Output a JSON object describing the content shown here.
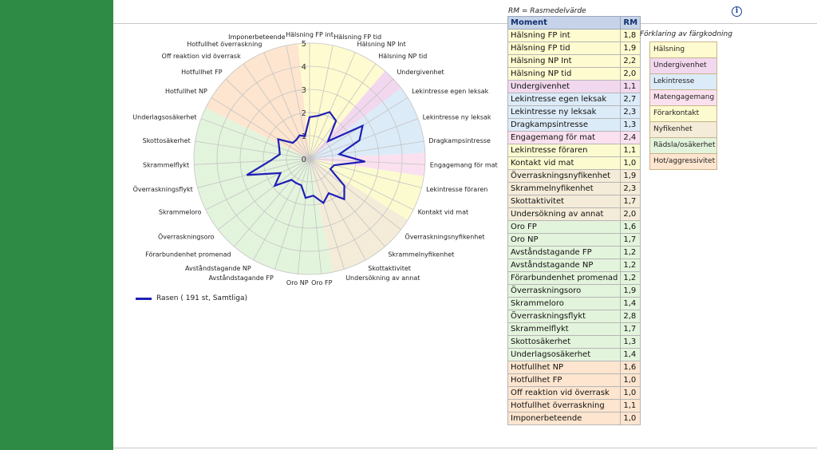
{
  "rm_note": "RM = Rasmedelvärde",
  "table_headers": {
    "moment": "Moment",
    "rm": "RM"
  },
  "legend_series": "Rasen ( 191 st, Samtliga)",
  "key_title": "Förklaring av färgkodning",
  "categories": [
    {
      "name": "Hälsning",
      "color": "#fffbd0"
    },
    {
      "name": "Undergivenhet",
      "color": "#f2d8ee"
    },
    {
      "name": "Lekintresse",
      "color": "#dcebf8"
    },
    {
      "name": "Matengagemang",
      "color": "#fbe1ef"
    },
    {
      "name": "Förarkontakt",
      "color": "#fcfbd0"
    },
    {
      "name": "Nyfikenhet",
      "color": "#f4ecd8"
    },
    {
      "name": "Rädsla/osäkerhet",
      "color": "#e3f4dc"
    },
    {
      "name": "Hot/aggressivitet",
      "color": "#fde5cf"
    }
  ],
  "rows": [
    {
      "moment": "Hälsning FP int",
      "rm": "1,8",
      "cat": 0
    },
    {
      "moment": "Hälsning FP tid",
      "rm": "1,9",
      "cat": 0
    },
    {
      "moment": "Hälsning NP Int",
      "rm": "2,2",
      "cat": 0
    },
    {
      "moment": "Hälsning NP tid",
      "rm": "2,0",
      "cat": 0
    },
    {
      "moment": "Undergivenhet",
      "rm": "1,1",
      "cat": 1
    },
    {
      "moment": "Lekintresse egen leksak",
      "rm": "2,7",
      "cat": 2
    },
    {
      "moment": "Lekintresse ny leksak",
      "rm": "2,3",
      "cat": 2
    },
    {
      "moment": "Dragkampsintresse",
      "rm": "1,3",
      "cat": 2
    },
    {
      "moment": "Engagemang för mat",
      "rm": "2,4",
      "cat": 3
    },
    {
      "moment": "Lekintresse föraren",
      "rm": "1,1",
      "cat": 4
    },
    {
      "moment": "Kontakt vid mat",
      "rm": "1,0",
      "cat": 4
    },
    {
      "moment": "Överraskningsnyfikenhet",
      "rm": "1,9",
      "cat": 5
    },
    {
      "moment": "Skrammelnyfikenhet",
      "rm": "2,3",
      "cat": 5
    },
    {
      "moment": "Skottaktivitet",
      "rm": "1,7",
      "cat": 5
    },
    {
      "moment": "Undersökning av annat",
      "rm": "2,0",
      "cat": 5
    },
    {
      "moment": "Oro FP",
      "rm": "1,6",
      "cat": 6
    },
    {
      "moment": "Oro NP",
      "rm": "1,7",
      "cat": 6
    },
    {
      "moment": "Avståndstagande FP",
      "rm": "1,2",
      "cat": 6
    },
    {
      "moment": "Avståndstagande NP",
      "rm": "1,2",
      "cat": 6
    },
    {
      "moment": "Förarbundenhet promenad",
      "rm": "1,2",
      "cat": 6
    },
    {
      "moment": "Överraskningsoro",
      "rm": "1,9",
      "cat": 6
    },
    {
      "moment": "Skrammeloro",
      "rm": "1,4",
      "cat": 6
    },
    {
      "moment": "Överraskningsflykt",
      "rm": "2,8",
      "cat": 6
    },
    {
      "moment": "Skrammelflykt",
      "rm": "1,7",
      "cat": 6
    },
    {
      "moment": "Skottosäkerhet",
      "rm": "1,3",
      "cat": 6
    },
    {
      "moment": "Underlagsosäkerhet",
      "rm": "1,4",
      "cat": 6
    },
    {
      "moment": "Hotfullhet NP",
      "rm": "1,6",
      "cat": 7
    },
    {
      "moment": "Hotfullhet FP",
      "rm": "1,0",
      "cat": 7
    },
    {
      "moment": "Off reaktion vid överrask",
      "rm": "1,0",
      "cat": 7
    },
    {
      "moment": "Hotfullhet överraskning",
      "rm": "1,1",
      "cat": 7
    },
    {
      "moment": "Imponerbeteende",
      "rm": "1,0",
      "cat": 7
    }
  ],
  "chart_data": {
    "type": "radar",
    "categories": [
      "Hälsning FP int",
      "Hälsning FP tid",
      "Hälsning NP Int",
      "Hälsning NP tid",
      "Undergivenhet",
      "Lekintresse egen leksak",
      "Lekintresse ny leksak",
      "Dragkampsintresse",
      "Engagemang för mat",
      "Lekintresse föraren",
      "Kontakt vid mat",
      "Överraskningsnyfikenhet",
      "Skrammelnyfikenhet",
      "Skottaktivitet",
      "Undersökning av annat",
      "Oro FP",
      "Oro NP",
      "Avståndstagande FP",
      "Avståndstagande NP",
      "Förarbundenhet promenad",
      "Överraskningsoro",
      "Skrammeloro",
      "Överraskningsflykt",
      "Skrammelflykt",
      "Skottosäkerhet",
      "Underlagsosäkerhet",
      "Hotfullhet NP",
      "Hotfullhet FP",
      "Off reaktion vid överrask",
      "Hotfullhet överraskning",
      "Imponerbeteende"
    ],
    "series": [
      {
        "name": "Rasen ( 191 st, Samtliga)",
        "values": [
          1.8,
          1.9,
          2.2,
          2.0,
          1.1,
          2.7,
          2.3,
          1.3,
          2.4,
          1.1,
          1.0,
          1.9,
          2.3,
          1.7,
          2.0,
          1.6,
          1.7,
          1.2,
          1.2,
          1.2,
          1.9,
          1.4,
          2.8,
          1.7,
          1.3,
          1.4,
          1.6,
          1.0,
          1.0,
          1.1,
          1.0
        ]
      }
    ],
    "rlim": [
      0,
      5
    ],
    "radial_ticks": [
      "0",
      "1",
      "2",
      "3",
      "4",
      "5"
    ],
    "series_color": "#1f1fb5",
    "legend_position": "bottom-left"
  }
}
